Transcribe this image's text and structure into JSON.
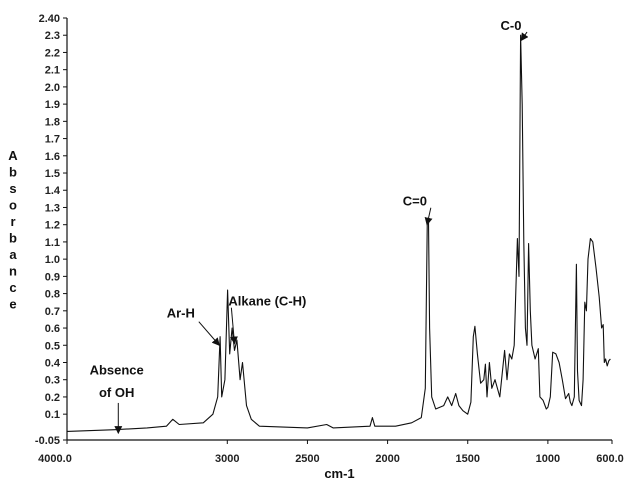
{
  "chart_data": {
    "type": "line",
    "xlabel": "cm-1",
    "ylabel": "Absorbance",
    "x_reversed": true,
    "xlim": [
      4000.0,
      600.0
    ],
    "ylim": [
      -0.05,
      2.4
    ],
    "grid": false,
    "x_ticks": [
      "4000.0",
      "3000",
      "2500",
      "2000",
      "1500",
      "1000",
      "600.0"
    ],
    "x_tick_values": [
      4000,
      3000,
      2500,
      2000,
      1500,
      1000,
      600
    ],
    "y_ticks": [
      "2.40",
      "2.3",
      "2.2",
      "2.1",
      "2.0",
      "1.9",
      "1.8",
      "1.7",
      "1.6",
      "1.5",
      "1.4",
      "1.3",
      "1.2",
      "1.1",
      "1.0",
      "0.9",
      "0.8",
      "0.7",
      "0.6",
      "0.5",
      "0.4",
      "0.3",
      "0.2",
      "0.1",
      "-0.05"
    ],
    "y_tick_values": [
      2.4,
      2.3,
      2.2,
      2.1,
      2.0,
      1.9,
      1.8,
      1.7,
      1.6,
      1.5,
      1.4,
      1.3,
      1.2,
      1.1,
      1.0,
      0.9,
      0.8,
      0.7,
      0.6,
      0.5,
      0.4,
      0.3,
      0.2,
      0.1,
      -0.05
    ],
    "series": [
      {
        "points": [
          [
            4000,
            0.0
          ],
          [
            3700,
            0.01
          ],
          [
            3500,
            0.02
          ],
          [
            3380,
            0.03
          ],
          [
            3340,
            0.07
          ],
          [
            3300,
            0.04
          ],
          [
            3150,
            0.05
          ],
          [
            3090,
            0.1
          ],
          [
            3060,
            0.2
          ],
          [
            3045,
            0.55
          ],
          [
            3035,
            0.2
          ],
          [
            3015,
            0.3
          ],
          [
            2998,
            0.82
          ],
          [
            2985,
            0.45
          ],
          [
            2970,
            0.6
          ],
          [
            2955,
            0.47
          ],
          [
            2940,
            0.53
          ],
          [
            2920,
            0.3
          ],
          [
            2905,
            0.4
          ],
          [
            2880,
            0.15
          ],
          [
            2850,
            0.07
          ],
          [
            2800,
            0.03
          ],
          [
            2500,
            0.02
          ],
          [
            2380,
            0.04
          ],
          [
            2340,
            0.02
          ],
          [
            2110,
            0.03
          ],
          [
            2095,
            0.08
          ],
          [
            2080,
            0.03
          ],
          [
            1950,
            0.03
          ],
          [
            1850,
            0.05
          ],
          [
            1790,
            0.08
          ],
          [
            1765,
            0.25
          ],
          [
            1752,
            1.23
          ],
          [
            1745,
            1.22
          ],
          [
            1738,
            0.6
          ],
          [
            1725,
            0.2
          ],
          [
            1700,
            0.13
          ],
          [
            1650,
            0.15
          ],
          [
            1625,
            0.2
          ],
          [
            1600,
            0.15
          ],
          [
            1575,
            0.22
          ],
          [
            1555,
            0.15
          ],
          [
            1530,
            0.12
          ],
          [
            1500,
            0.1
          ],
          [
            1480,
            0.17
          ],
          [
            1465,
            0.55
          ],
          [
            1455,
            0.61
          ],
          [
            1440,
            0.45
          ],
          [
            1420,
            0.28
          ],
          [
            1400,
            0.3
          ],
          [
            1390,
            0.39
          ],
          [
            1380,
            0.2
          ],
          [
            1365,
            0.4
          ],
          [
            1350,
            0.25
          ],
          [
            1330,
            0.3
          ],
          [
            1300,
            0.2
          ],
          [
            1270,
            0.47
          ],
          [
            1255,
            0.3
          ],
          [
            1240,
            0.45
          ],
          [
            1225,
            0.42
          ],
          [
            1210,
            0.5
          ],
          [
            1190,
            1.12
          ],
          [
            1180,
            0.9
          ],
          [
            1170,
            2.3
          ],
          [
            1160,
            1.9
          ],
          [
            1150,
            1.1
          ],
          [
            1140,
            0.6
          ],
          [
            1130,
            0.5
          ],
          [
            1120,
            1.09
          ],
          [
            1110,
            0.7
          ],
          [
            1100,
            0.5
          ],
          [
            1080,
            0.42
          ],
          [
            1060,
            0.48
          ],
          [
            1050,
            0.2
          ],
          [
            1030,
            0.18
          ],
          [
            1010,
            0.13
          ],
          [
            1000,
            0.14
          ],
          [
            985,
            0.2
          ],
          [
            970,
            0.46
          ],
          [
            950,
            0.45
          ],
          [
            930,
            0.4
          ],
          [
            910,
            0.3
          ],
          [
            890,
            0.19
          ],
          [
            870,
            0.22
          ],
          [
            860,
            0.17
          ],
          [
            850,
            0.15
          ],
          [
            835,
            0.2
          ],
          [
            822,
            0.97
          ],
          [
            815,
            0.35
          ],
          [
            805,
            0.18
          ],
          [
            790,
            0.15
          ],
          [
            780,
            0.3
          ],
          [
            770,
            0.75
          ],
          [
            760,
            0.7
          ],
          [
            750,
            1.0
          ],
          [
            735,
            1.12
          ],
          [
            720,
            1.1
          ],
          [
            700,
            0.95
          ],
          [
            680,
            0.78
          ],
          [
            665,
            0.6
          ],
          [
            655,
            0.62
          ],
          [
            648,
            0.4
          ],
          [
            640,
            0.42
          ],
          [
            630,
            0.38
          ],
          [
            620,
            0.41
          ],
          [
            610,
            0.42
          ]
        ]
      }
    ],
    "annotations": [
      {
        "text": "C-0",
        "tx": 1230,
        "ty": 2.33,
        "ax": 1167,
        "ay": 2.27
      },
      {
        "text": "C=0",
        "tx": 1830,
        "ty": 1.31,
        "ax": 1754,
        "ay": 1.2
      },
      {
        "text": "Ar-H",
        "tx": 3290,
        "ty": 0.66,
        "ax": 3050,
        "ay": 0.5
      },
      {
        "text": "Alkane (C-H)",
        "tx": 2750,
        "ty": 0.73,
        "ax": 2955,
        "ay": 0.51
      },
      {
        "text": "Absence",
        "tx": 3690,
        "ty": 0.33,
        "ax": null,
        "ay": null
      },
      {
        "text": "of OH",
        "tx": 3690,
        "ty": 0.2,
        "ax": 3680,
        "ay": -0.01
      }
    ]
  }
}
